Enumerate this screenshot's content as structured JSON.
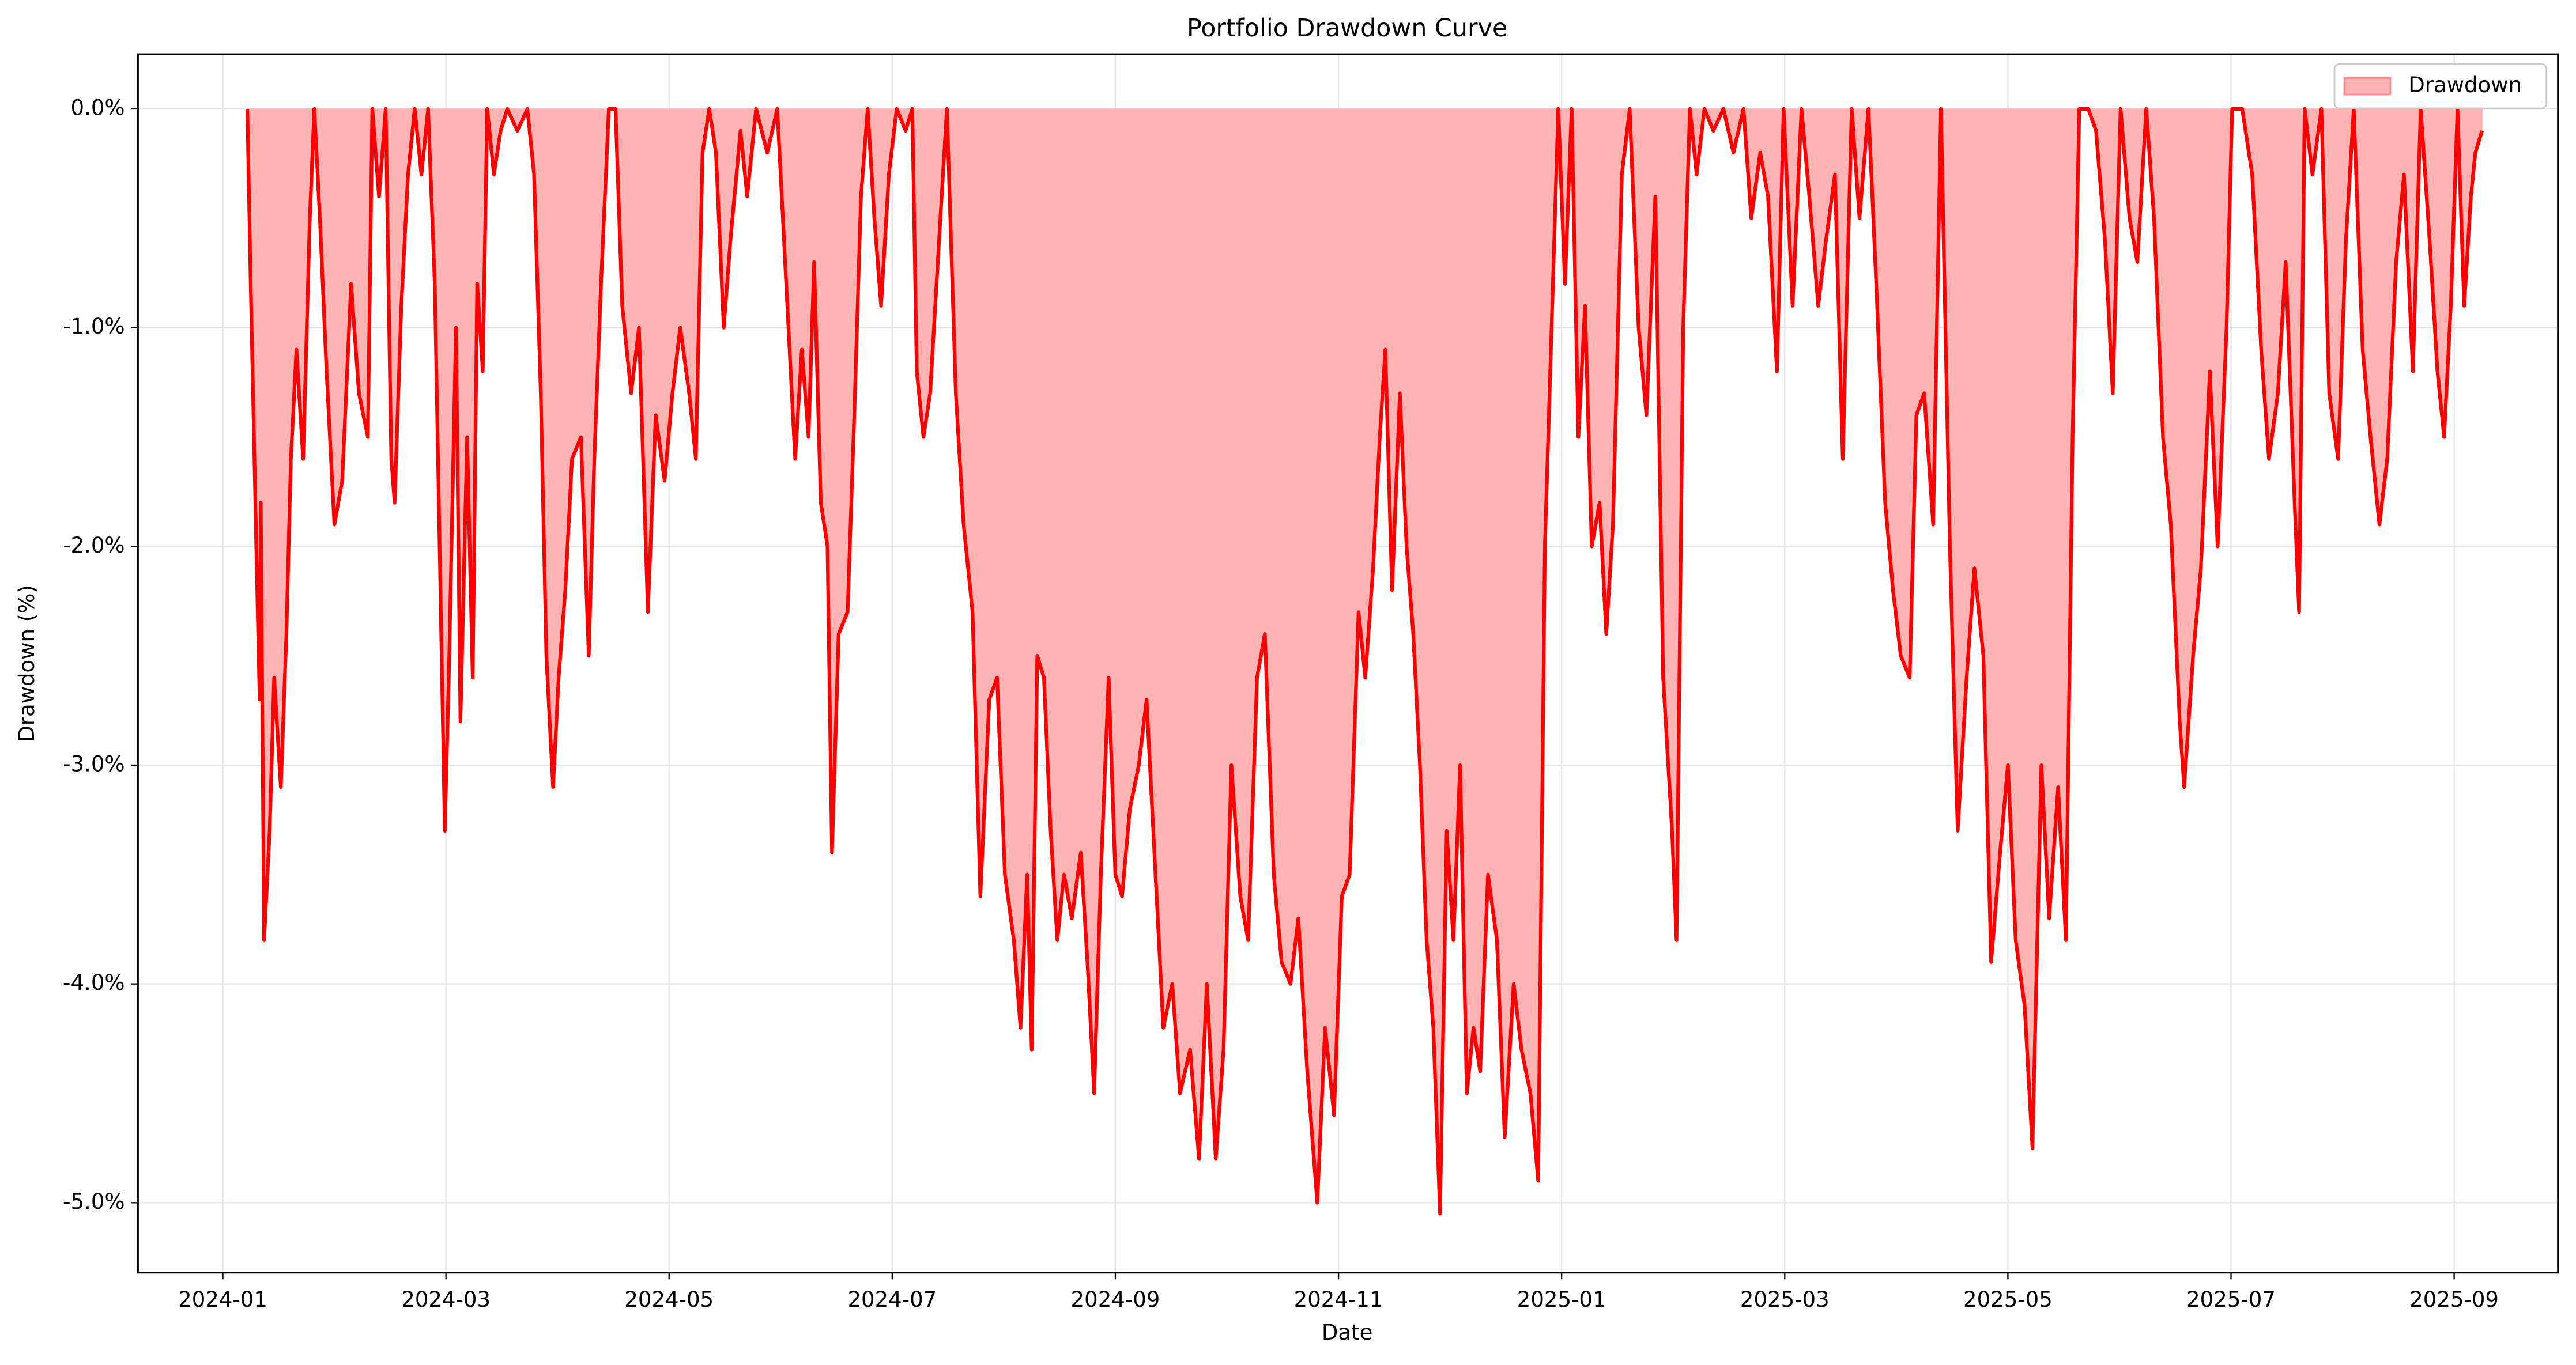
{
  "chart_data": {
    "type": "area",
    "title": "Portfolio Drawdown Curve",
    "x_label": "Date",
    "y_label": "Drawdown (%)",
    "x": [
      0.22,
      0.25,
      0.3,
      0.33,
      0.34,
      0.37,
      0.42,
      0.46,
      0.52,
      0.57,
      0.61,
      0.66,
      0.72,
      0.78,
      0.82,
      0.87,
      0.93,
      1.0,
      1.07,
      1.15,
      1.22,
      1.3,
      1.34,
      1.4,
      1.46,
      1.51,
      1.54,
      1.6,
      1.66,
      1.72,
      1.78,
      1.84,
      1.9,
      1.94,
      1.99,
      2.03,
      2.09,
      2.13,
      2.19,
      2.24,
      2.28,
      2.33,
      2.37,
      2.43,
      2.49,
      2.55,
      2.64,
      2.73,
      2.79,
      2.85,
      2.9,
      2.96,
      3.01,
      3.07,
      3.13,
      3.21,
      3.28,
      3.33,
      3.39,
      3.46,
      3.52,
      3.58,
      3.66,
      3.73,
      3.81,
      3.88,
      3.96,
      4.03,
      4.1,
      4.18,
      4.24,
      4.3,
      4.36,
      4.42,
      4.49,
      4.55,
      4.64,
      4.7,
      4.78,
      4.88,
      4.97,
      5.03,
      5.09,
      5.13,
      5.19,
      5.25,
      5.3,
      5.36,
      5.42,
      5.46,
      5.52,
      5.6,
      5.66,
      5.72,
      5.78,
      5.84,
      5.9,
      5.97,
      6.04,
      6.12,
      6.18,
      6.22,
      6.28,
      6.34,
      6.42,
      6.49,
      6.57,
      6.64,
      6.72,
      6.79,
      6.87,
      6.94,
      7.01,
      7.09,
      7.15,
      7.21,
      7.25,
      7.3,
      7.36,
      7.42,
      7.48,
      7.54,
      7.61,
      7.69,
      7.75,
      7.81,
      7.87,
      7.94,
      8.0,
      8.06,
      8.13,
      8.21,
      8.28,
      8.36,
      8.43,
      8.51,
      8.58,
      8.67,
      8.75,
      8.82,
      8.9,
      8.97,
      9.04,
      9.12,
      9.19,
      9.27,
      9.34,
      9.42,
      9.49,
      9.57,
      9.64,
      9.72,
      9.81,
      9.88,
      9.96,
      10.03,
      10.1,
      10.18,
      10.24,
      10.31,
      10.37,
      10.42,
      10.48,
      10.55,
      10.61,
      10.67,
      10.73,
      10.79,
      10.85,
      10.91,
      10.97,
      11.03,
      11.09,
      11.15,
      11.21,
      11.27,
      11.34,
      11.42,
      11.49,
      11.57,
      11.64,
      11.72,
      11.79,
      11.85,
      11.91,
      11.97,
      12.03,
      12.09,
      12.15,
      12.21,
      12.27,
      12.34,
      12.4,
      12.46,
      12.54,
      12.61,
      12.69,
      12.76,
      12.84,
      12.91,
      12.99,
      13.03,
      13.09,
      13.15,
      13.21,
      13.28,
      13.36,
      13.45,
      13.54,
      13.63,
      13.7,
      13.78,
      13.85,
      13.93,
      13.99,
      14.07,
      14.15,
      14.22,
      14.3,
      14.37,
      14.45,
      14.52,
      14.6,
      14.67,
      14.75,
      14.82,
      14.9,
      14.97,
      15.04,
      15.12,
      15.18,
      15.25,
      15.33,
      15.4,
      15.48,
      15.55,
      15.63,
      15.7,
      15.78,
      15.85,
      15.93,
      16.0,
      16.07,
      16.15,
      16.22,
      16.3,
      16.37,
      16.45,
      16.52,
      16.58,
      16.64,
      16.72,
      16.79,
      16.87,
      16.94,
      17.01,
      17.09,
      17.16,
      17.24,
      17.31,
      17.39,
      17.46,
      17.54,
      17.58,
      17.66,
      17.73,
      17.81,
      17.88,
      17.96,
      18.01,
      18.1,
      18.19,
      18.27,
      18.34,
      18.42,
      18.49,
      18.57,
      18.61,
      18.66,
      18.73,
      18.81,
      18.88,
      18.96,
      19.03,
      19.1,
      19.18,
      19.25,
      19.33,
      19.4,
      19.48,
      19.55,
      19.63,
      19.7,
      19.78,
      19.85,
      19.91,
      19.97,
      20.03,
      20.09,
      20.15,
      20.19,
      20.25
    ],
    "series": [
      {
        "name": "Drawdown",
        "color": "#ff0000",
        "fill_color": "#ffb3b3",
        "values": [
          0,
          -0.8,
          -2.0,
          -2.7,
          -1.8,
          -3.8,
          -3.3,
          -2.6,
          -3.1,
          -2.4,
          -1.6,
          -1.1,
          -1.6,
          -0.5,
          0,
          -0.5,
          -1.2,
          -1.9,
          -1.7,
          -0.8,
          -1.3,
          -1.5,
          0,
          -0.4,
          0,
          -1.6,
          -1.8,
          -0.9,
          -0.3,
          0,
          -0.3,
          0,
          -0.8,
          -1.9,
          -3.3,
          -2.5,
          -1.0,
          -2.8,
          -1.5,
          -2.6,
          -0.8,
          -1.2,
          0,
          -0.3,
          -0.1,
          0,
          -0.1,
          0,
          -0.3,
          -1.3,
          -2.5,
          -3.1,
          -2.6,
          -2.2,
          -1.6,
          -1.5,
          -2.5,
          -1.6,
          -0.8,
          0,
          0,
          -0.9,
          -1.3,
          -1.0,
          -2.3,
          -1.4,
          -1.7,
          -1.3,
          -1.0,
          -1.3,
          -1.6,
          -0.2,
          0,
          -0.2,
          -1.0,
          -0.6,
          -0.1,
          -0.4,
          0,
          -0.2,
          0,
          -0.6,
          -1.2,
          -1.6,
          -1.1,
          -1.5,
          -0.7,
          -1.8,
          -2.0,
          -3.4,
          -2.4,
          -2.3,
          -1.4,
          -0.4,
          0,
          -0.5,
          -0.9,
          -0.3,
          0,
          -0.1,
          0,
          -1.2,
          -1.5,
          -1.3,
          -0.6,
          0,
          -1.3,
          -1.9,
          -2.3,
          -3.6,
          -2.7,
          -2.6,
          -3.5,
          -3.8,
          -4.2,
          -3.5,
          -4.3,
          -2.5,
          -2.6,
          -3.3,
          -3.8,
          -3.5,
          -3.7,
          -3.4,
          -3.9,
          -4.5,
          -3.5,
          -2.6,
          -3.5,
          -3.6,
          -3.2,
          -3.0,
          -2.7,
          -3.5,
          -4.2,
          -4.0,
          -4.5,
          -4.3,
          -4.8,
          -4.0,
          -4.8,
          -4.3,
          -3.0,
          -3.6,
          -3.8,
          -2.6,
          -2.4,
          -3.5,
          -3.9,
          -4.0,
          -3.7,
          -4.4,
          -5.0,
          -4.2,
          -4.6,
          -3.6,
          -3.5,
          -2.3,
          -2.6,
          -2.1,
          -1.5,
          -1.1,
          -2.2,
          -1.3,
          -2.0,
          -2.4,
          -3.0,
          -3.8,
          -4.2,
          -5.05,
          -3.3,
          -3.8,
          -3.0,
          -4.5,
          -4.2,
          -4.4,
          -3.5,
          -3.8,
          -4.7,
          -4.0,
          -4.3,
          -4.5,
          -4.9,
          -2.0,
          -1.0,
          0,
          -0.8,
          0,
          -1.5,
          -0.9,
          -2.0,
          -1.8,
          -2.4,
          -1.9,
          -0.3,
          0,
          -1.0,
          -1.4,
          -0.4,
          -2.6,
          -3.3,
          -3.8,
          -1.0,
          0,
          -0.3,
          0,
          -0.1,
          0,
          -0.2,
          0,
          -0.5,
          -0.2,
          -0.4,
          -1.2,
          0,
          -0.9,
          0,
          -0.4,
          -0.9,
          -0.6,
          -0.3,
          -1.6,
          0,
          -0.5,
          0,
          -0.8,
          -1.8,
          -2.2,
          -2.5,
          -2.6,
          -1.4,
          -1.3,
          -1.9,
          0,
          -2.0,
          -3.3,
          -2.6,
          -2.1,
          -2.5,
          -3.9,
          -3.4,
          -3.0,
          -3.8,
          -4.1,
          -4.75,
          -3.0,
          -3.7,
          -3.1,
          -3.8,
          -1.5,
          0,
          0,
          -0.1,
          -0.6,
          -1.3,
          0,
          -0.5,
          -0.7,
          0,
          -0.5,
          -1.5,
          -1.9,
          -2.8,
          -3.1,
          -2.5,
          -2.1,
          -1.2,
          -2.0,
          -1.0,
          0,
          0,
          -0.3,
          -1.1,
          -1.6,
          -1.3,
          -0.7,
          -1.8,
          -2.3,
          0,
          -0.3,
          0,
          -1.3,
          -1.6,
          -0.6,
          0,
          -1.1,
          -1.5,
          -1.9,
          -1.6,
          -0.7,
          -0.3,
          -1.2,
          0,
          -0.6,
          -1.2,
          -1.5,
          -0.9,
          0,
          -0.9,
          -0.4,
          -0.2,
          -0.1
        ]
      }
    ],
    "xlim": [
      -0.76,
      20.93
    ],
    "xticks": [
      {
        "value": 0,
        "label": "2024-01"
      },
      {
        "value": 2,
        "label": "2024-03"
      },
      {
        "value": 4,
        "label": "2024-05"
      },
      {
        "value": 6,
        "label": "2024-07"
      },
      {
        "value": 8,
        "label": "2024-09"
      },
      {
        "value": 10,
        "label": "2024-11"
      },
      {
        "value": 12,
        "label": "2025-01"
      },
      {
        "value": 14,
        "label": "2025-03"
      },
      {
        "value": 16,
        "label": "2025-05"
      },
      {
        "value": 18,
        "label": "2025-07"
      },
      {
        "value": 20,
        "label": "2025-09"
      }
    ],
    "ylim": [
      -5.32,
      0.25
    ],
    "yticks": [
      {
        "value": -5,
        "label": "-5.0%"
      },
      {
        "value": -4,
        "label": "-4.0%"
      },
      {
        "value": -3,
        "label": "-3.0%"
      },
      {
        "value": -2,
        "label": "-2.0%"
      },
      {
        "value": -1,
        "label": "-1.0%"
      },
      {
        "value": 0,
        "label": "0.0%"
      }
    ],
    "grid": true,
    "legend": "upper right"
  }
}
